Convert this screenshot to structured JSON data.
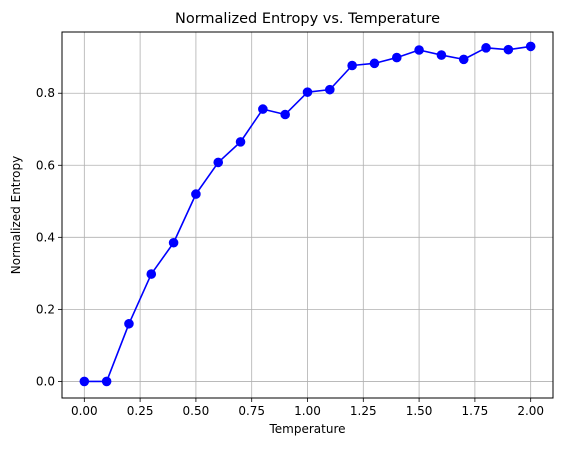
{
  "chart_data": {
    "type": "line",
    "title": "Normalized Entropy vs. Temperature",
    "xlabel": "Temperature",
    "ylabel": "Normalized Entropy",
    "xlim": [
      -0.1,
      2.1
    ],
    "ylim": [
      -0.046,
      0.97
    ],
    "x_ticks": [
      0.0,
      0.25,
      0.5,
      0.75,
      1.0,
      1.25,
      1.5,
      1.75,
      2.0
    ],
    "x_tick_labels": [
      "0.00",
      "0.25",
      "0.50",
      "0.75",
      "1.00",
      "1.25",
      "1.50",
      "1.75",
      "2.00"
    ],
    "y_ticks": [
      0.0,
      0.2,
      0.4,
      0.6,
      0.8
    ],
    "y_tick_labels": [
      "0.0",
      "0.2",
      "0.4",
      "0.6",
      "0.8"
    ],
    "grid": true,
    "series": [
      {
        "color": "#0000ff",
        "marker": "circle",
        "x": [
          0.0,
          0.1,
          0.2,
          0.3,
          0.4,
          0.5,
          0.6,
          0.7,
          0.8,
          0.9,
          1.0,
          1.1,
          1.2,
          1.3,
          1.4,
          1.5,
          1.6,
          1.7,
          1.8,
          1.9,
          2.0
        ],
        "y": [
          0.0,
          0.0,
          0.16,
          0.298,
          0.385,
          0.52,
          0.608,
          0.665,
          0.756,
          0.741,
          0.803,
          0.81,
          0.877,
          0.883,
          0.899,
          0.92,
          0.906,
          0.894,
          0.926,
          0.921,
          0.93
        ]
      }
    ]
  }
}
